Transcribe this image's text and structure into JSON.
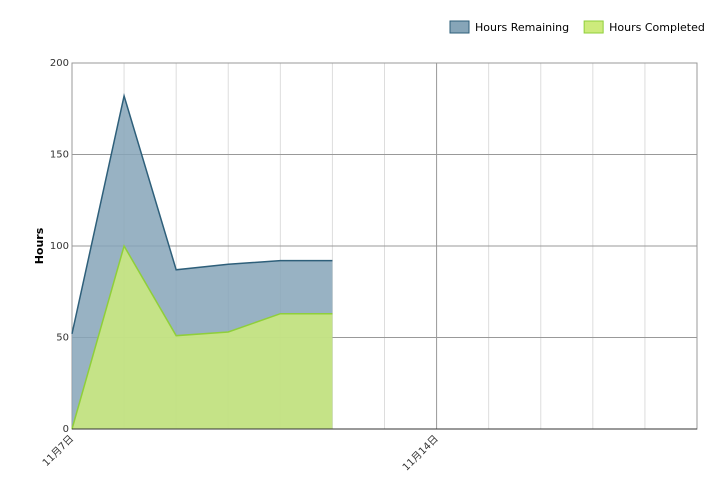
{
  "chart_data": {
    "type": "area",
    "y_label": "Hours",
    "categories": [
      "11月7日",
      null,
      null,
      null,
      null,
      null,
      null,
      "11月14日",
      null,
      null,
      null,
      null,
      null
    ],
    "series": [
      {
        "name": "Hours Remaining",
        "color": "#2e5f7a",
        "fill": "#86a5b8",
        "values": [
          52,
          182,
          87,
          90,
          92,
          92,
          null,
          null,
          null,
          null,
          null,
          null,
          null
        ]
      },
      {
        "name": "Hours Completed",
        "color": "#8fcf3a",
        "fill": "#cdeb7c",
        "values": [
          0,
          100,
          51,
          53,
          63,
          63,
          null,
          null,
          null,
          null,
          null,
          null,
          null
        ]
      }
    ],
    "ylim": [
      0,
      200
    ],
    "yticks": [
      0,
      50,
      100,
      150,
      200
    ],
    "grid": true,
    "legend": "top-right"
  }
}
